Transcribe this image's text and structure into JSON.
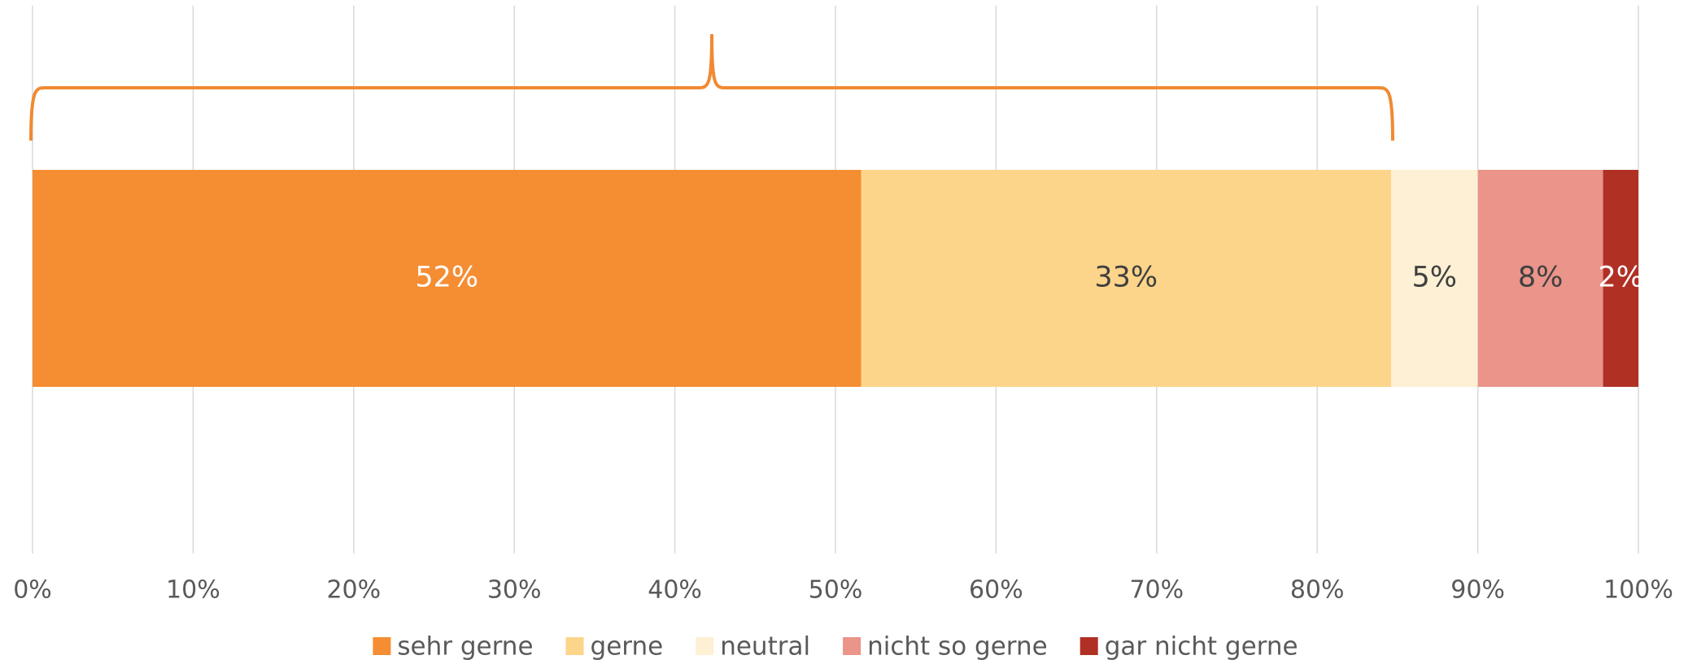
{
  "chart_data": {
    "type": "bar",
    "orientation": "horizontal",
    "stacked": true,
    "categories": [
      null
    ],
    "series": [
      {
        "name": "sehr gerne",
        "color": "#f58d33",
        "label_color": "#ffffff",
        "values": [
          51.6
        ],
        "value_labels": [
          "52%"
        ]
      },
      {
        "name": "gerne",
        "color": "#fdd58a",
        "label_color": "#404040",
        "values": [
          33.0
        ],
        "value_labels": [
          "33%"
        ]
      },
      {
        "name": "neutral",
        "color": "#fdf0d4",
        "label_color": "#404040",
        "values": [
          5.4
        ],
        "value_labels": [
          "5%"
        ]
      },
      {
        "name": "nicht so gerne",
        "color": "#ea948a",
        "label_color": "#404040",
        "values": [
          7.8
        ],
        "value_labels": [
          "8%"
        ]
      },
      {
        "name": "gar nicht gerne",
        "color": "#b03024",
        "label_color": "#ffffff",
        "values": [
          2.2
        ],
        "value_labels": [
          "2%"
        ]
      }
    ],
    "xlim": [
      0,
      100
    ],
    "xticks": [
      {
        "value": 0,
        "label": "0%"
      },
      {
        "value": 10,
        "label": "10%"
      },
      {
        "value": 20,
        "label": "20%"
      },
      {
        "value": 30,
        "label": "30%"
      },
      {
        "value": 40,
        "label": "40%"
      },
      {
        "value": 50,
        "label": "50%"
      },
      {
        "value": 60,
        "label": "60%"
      },
      {
        "value": 70,
        "label": "70%"
      },
      {
        "value": 80,
        "label": "80%"
      },
      {
        "value": 90,
        "label": "90%"
      },
      {
        "value": 100,
        "label": "100%"
      }
    ],
    "grid": true,
    "legend": "bottom",
    "bracket_color": "#f08a33"
  }
}
